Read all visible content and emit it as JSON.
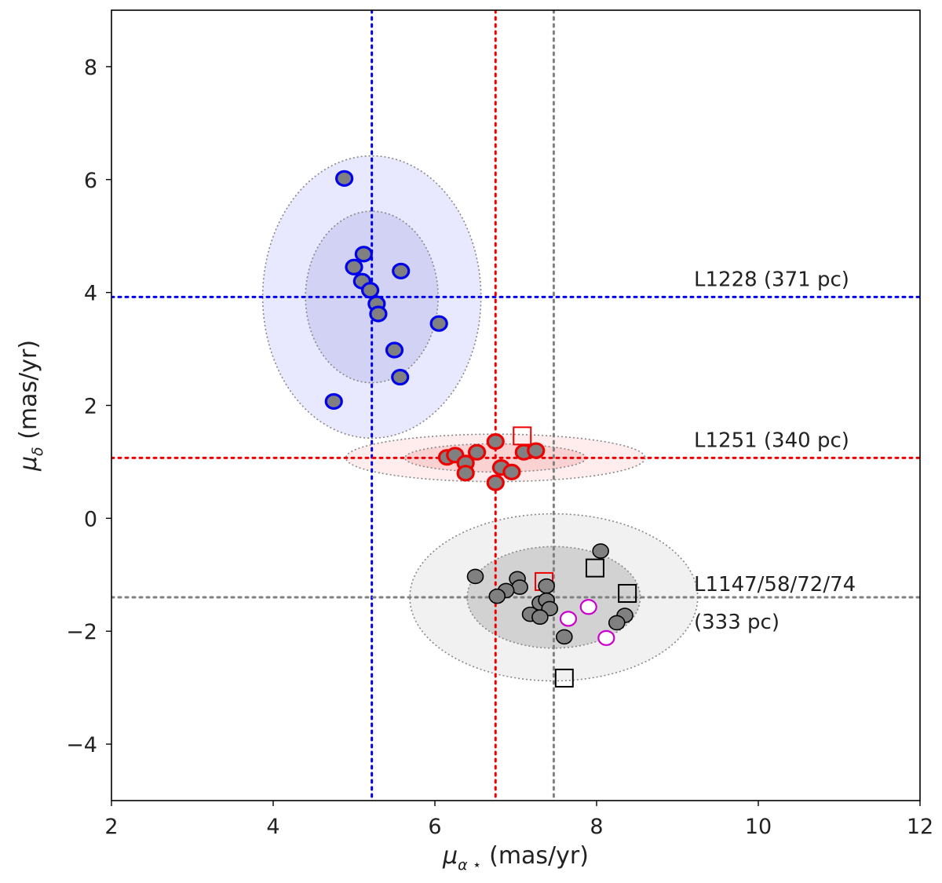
{
  "chart_data": {
    "type": "scatter",
    "xlabel": {
      "symbol": "μ",
      "sub": "α ⋆",
      "unit": "(mas/yr)"
    },
    "ylabel": {
      "symbol": "μ",
      "sub": "δ",
      "unit": "(mas/yr)"
    },
    "xlim": [
      2,
      12
    ],
    "ylim": [
      -5,
      9
    ],
    "xticks": [
      2,
      4,
      6,
      8,
      10,
      12
    ],
    "yticks": [
      -4,
      -2,
      0,
      2,
      4,
      6,
      8
    ],
    "xtick_labels": [
      "2",
      "4",
      "6",
      "8",
      "10",
      "12"
    ],
    "ytick_labels": [
      "−4",
      "−2",
      "0",
      "2",
      "4",
      "6",
      "8"
    ],
    "grid": false,
    "groups": [
      {
        "label": "L1228 (371 pc)",
        "label_lines": [
          "L1228 (371 pc)"
        ],
        "color": "#0000ee",
        "fill": "#e8e8ff",
        "inner_fill": "#d2d2f5",
        "center": [
          5.22,
          3.92
        ],
        "ellipse_outer": {
          "rx": 1.35,
          "ry": 2.5
        },
        "ellipse_inner": {
          "rx": 0.82,
          "ry": 1.52
        },
        "points": [
          {
            "x": 4.88,
            "y": 6.02
          },
          {
            "x": 5.12,
            "y": 4.68
          },
          {
            "x": 5.0,
            "y": 4.45
          },
          {
            "x": 5.58,
            "y": 4.38
          },
          {
            "x": 5.1,
            "y": 4.2
          },
          {
            "x": 5.2,
            "y": 4.04
          },
          {
            "x": 5.28,
            "y": 3.8
          },
          {
            "x": 5.3,
            "y": 3.62
          },
          {
            "x": 6.05,
            "y": 3.45
          },
          {
            "x": 5.5,
            "y": 2.98
          },
          {
            "x": 5.57,
            "y": 2.5
          },
          {
            "x": 4.75,
            "y": 2.07
          }
        ]
      },
      {
        "label": "L1251 (340 pc)",
        "label_lines": [
          "L1251 (340 pc)"
        ],
        "color": "#ee0000",
        "fill": "#ffeded",
        "inner_fill": "#fbd2d2",
        "center": [
          6.75,
          1.07
        ],
        "ellipse_outer": {
          "rx": 1.85,
          "ry": 0.42
        },
        "ellipse_inner": {
          "rx": 1.12,
          "ry": 0.25
        },
        "points": [
          {
            "x": 6.75,
            "y": 1.36
          },
          {
            "x": 6.15,
            "y": 1.08
          },
          {
            "x": 6.25,
            "y": 1.12
          },
          {
            "x": 6.52,
            "y": 1.17
          },
          {
            "x": 6.38,
            "y": 0.98
          },
          {
            "x": 6.82,
            "y": 0.9
          },
          {
            "x": 6.38,
            "y": 0.8
          },
          {
            "x": 6.95,
            "y": 0.82
          },
          {
            "x": 6.75,
            "y": 0.63
          },
          {
            "x": 7.1,
            "y": 1.17
          },
          {
            "x": 7.25,
            "y": 1.2
          }
        ],
        "squares": [
          {
            "x": 7.08,
            "y": 1.46
          },
          {
            "x": 7.35,
            "y": -1.12
          }
        ]
      },
      {
        "label": "L1147/58/72/74 (333 pc)",
        "label_lines": [
          "L1147/58/72/74",
          "(333 pc)"
        ],
        "color": "#808080",
        "fill": "#f1f1f1",
        "inner_fill": "#d2d2d2",
        "center": [
          7.47,
          -1.4
        ],
        "ellipse_outer": {
          "rx": 1.78,
          "ry": 1.48
        },
        "ellipse_inner": {
          "rx": 1.07,
          "ry": 0.9
        },
        "points": [
          {
            "x": 6.5,
            "y": -1.03
          },
          {
            "x": 7.02,
            "y": -1.07
          },
          {
            "x": 7.05,
            "y": -1.22
          },
          {
            "x": 6.88,
            "y": -1.28
          },
          {
            "x": 6.77,
            "y": -1.38
          },
          {
            "x": 7.3,
            "y": -1.5
          },
          {
            "x": 7.38,
            "y": -1.2
          },
          {
            "x": 7.38,
            "y": -1.45
          },
          {
            "x": 7.42,
            "y": -1.6
          },
          {
            "x": 7.18,
            "y": -1.7
          },
          {
            "x": 7.3,
            "y": -1.75
          },
          {
            "x": 7.6,
            "y": -2.1
          },
          {
            "x": 8.05,
            "y": -0.58
          },
          {
            "x": 8.35,
            "y": -1.72
          },
          {
            "x": 8.25,
            "y": -1.85
          }
        ],
        "squares": [
          {
            "x": 7.98,
            "y": -0.88
          },
          {
            "x": 8.38,
            "y": -1.33
          },
          {
            "x": 7.6,
            "y": -2.83
          }
        ],
        "open_circles": [
          {
            "x": 7.65,
            "y": -1.78
          },
          {
            "x": 7.9,
            "y": -1.57
          },
          {
            "x": 8.12,
            "y": -2.12
          }
        ]
      }
    ],
    "open_circle_color": "#cc00cc"
  }
}
